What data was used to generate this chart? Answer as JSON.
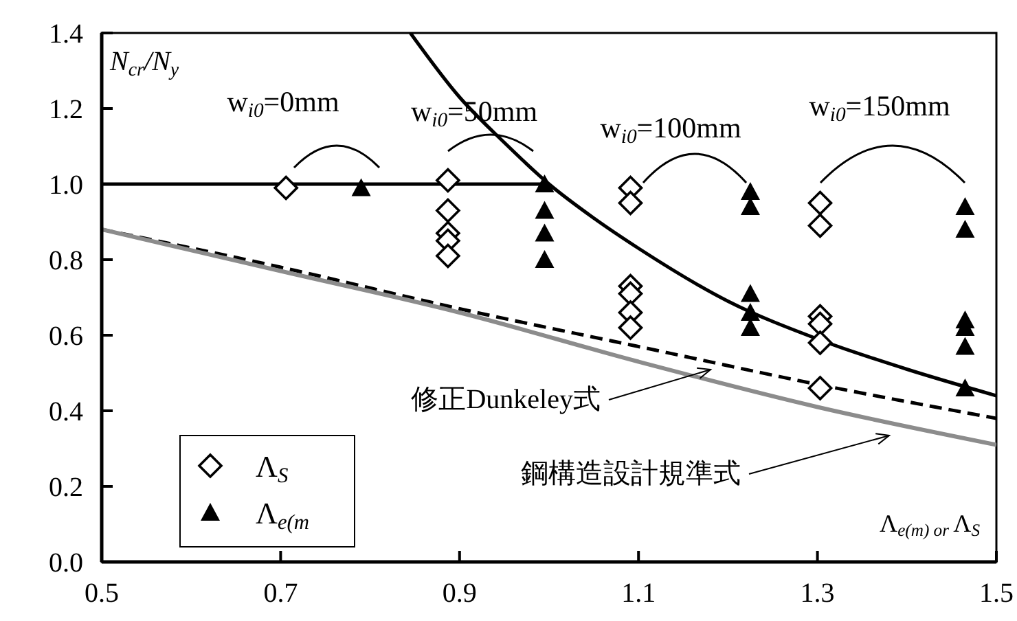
{
  "chart_data": {
    "type": "scatter",
    "xlabel": "Λ$_{e(m) or }$Λ$_{S}$",
    "ylabel": "N$_{cr}$/N$_{y}$",
    "xlim": [
      0.5,
      1.5
    ],
    "ylim": [
      0,
      1.4
    ],
    "xticks": [
      0.5,
      0.7,
      0.9,
      1.1,
      1.3,
      1.5
    ],
    "yticks": [
      {
        "value": 0,
        "label": "0.0"
      },
      0.2,
      0.4,
      0.6,
      0.8,
      {
        "value": 1,
        "label": "1.0"
      },
      1.2,
      1.4
    ],
    "grid": false,
    "legend": "bottom left",
    "series": [
      {
        "type": "line",
        "color": "#000000",
        "line_style": "solid",
        "marker": "none",
        "x": [
          0.5,
          1.0
        ],
        "values": [
          1.0,
          1.0
        ]
      },
      {
        "type": "line",
        "color": "#000000",
        "line_style": "solid",
        "marker": "none",
        "x": [
          0.845,
          0.9,
          0.95,
          1.0,
          1.05,
          1.1,
          1.2,
          1.3,
          1.4,
          1.5
        ],
        "values": [
          1.4,
          1.23,
          1.11,
          1.0,
          0.91,
          0.83,
          0.69,
          0.59,
          0.51,
          0.44
        ]
      },
      {
        "type": "line",
        "color": "#000000",
        "line_style": "dashed",
        "marker": "none",
        "x": [
          0.5,
          0.7,
          0.9,
          1.1,
          1.3,
          1.5
        ],
        "values": [
          0.88,
          0.78,
          0.67,
          0.57,
          0.47,
          0.38
        ]
      },
      {
        "type": "line",
        "color": "#8c8c8c",
        "line_style": "solid",
        "marker": "none",
        "x": [
          0.5,
          0.7,
          0.9,
          1.1,
          1.3,
          1.5
        ],
        "values": [
          0.88,
          0.77,
          0.66,
          0.53,
          0.41,
          0.31
        ]
      },
      {
        "name": "Λ$_{S}$",
        "color": "#000000",
        "marker": "diamond",
        "x": [
          0.706,
          0.887,
          0.887,
          0.887,
          0.887,
          0.887,
          1.091,
          1.091,
          1.091,
          1.091,
          1.091,
          1.091,
          1.303,
          1.303,
          1.303,
          1.303,
          1.303,
          1.303
        ],
        "values": [
          0.99,
          1.01,
          0.93,
          0.87,
          0.85,
          0.81,
          0.99,
          0.95,
          0.73,
          0.71,
          0.66,
          0.62,
          0.95,
          0.89,
          0.65,
          0.63,
          0.58,
          0.46
        ]
      },
      {
        "name": "Λ$_{e(m}$",
        "color": "#000000",
        "marker": "triangle",
        "x": [
          0.79,
          0.995,
          0.995,
          0.995,
          0.995,
          1.225,
          1.225,
          1.225,
          1.225,
          1.225,
          1.465,
          1.465,
          1.465,
          1.465,
          1.465,
          1.465
        ],
        "values": [
          0.99,
          1.0,
          0.93,
          0.87,
          0.8,
          0.98,
          0.94,
          0.71,
          0.66,
          0.62,
          0.94,
          0.88,
          0.64,
          0.62,
          0.57,
          0.46
        ]
      }
    ],
    "annotations": [
      "w$_{i0}$=0mm",
      "w$_{i0}$=50mm",
      "w$_{i0}$=100mm",
      "w$_{i0}$=150mm",
      "修正Dunkeley式",
      "鋼構造設計規準式"
    ]
  }
}
